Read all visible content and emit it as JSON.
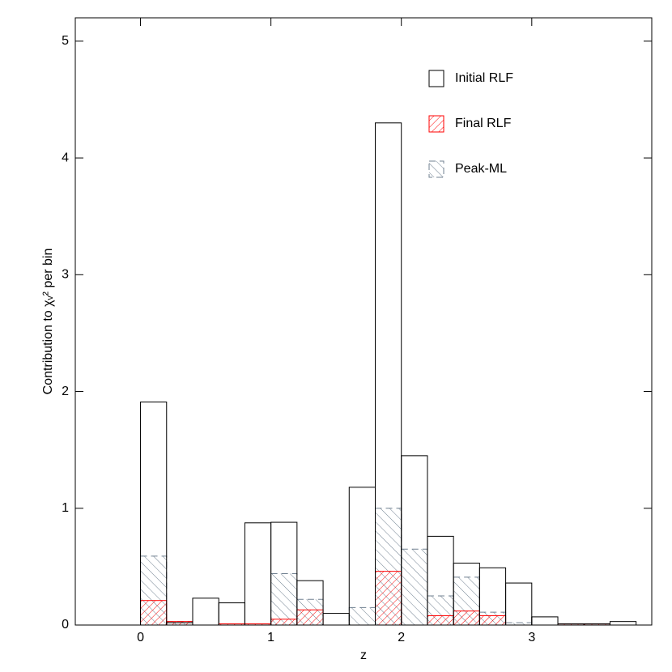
{
  "chart_data": {
    "type": "histogram",
    "xlabel": "z",
    "ylabel": "Contribution to χᵥ² per bin",
    "bins": [
      0,
      0.2,
      0.4,
      0.6,
      0.8,
      1.0,
      1.2,
      1.4,
      1.6,
      1.8,
      2.0,
      2.2,
      2.4,
      2.6,
      2.8,
      3.0,
      3.2,
      3.4,
      3.6,
      3.8
    ],
    "series": [
      {
        "name": "Initial RLF",
        "color": "#000000",
        "hatch": "none",
        "linestyle": "solid",
        "values": [
          1.91,
          0.02,
          0.23,
          0.19,
          0.875,
          0.88,
          0.38,
          0.1,
          1.18,
          4.3,
          1.45,
          0.76,
          0.53,
          0.49,
          0.36,
          0.07,
          0.01,
          0.01,
          0.03
        ]
      },
      {
        "name": "Final RLF",
        "color": "#ff0000",
        "hatch": "/",
        "linestyle": "solid",
        "values": [
          0.21,
          0.03,
          0,
          0.01,
          0.01,
          0.05,
          0.13,
          0,
          0,
          0.46,
          0,
          0.08,
          0.12,
          0.08,
          0,
          0,
          0.01,
          0.01,
          0
        ]
      },
      {
        "name": "Peak-ML",
        "color": "#708090",
        "hatch": "\\",
        "linestyle": "dashed",
        "values": [
          0.59,
          0.03,
          0,
          0,
          0,
          0.44,
          0.22,
          0,
          0.15,
          1.0,
          0.65,
          0.25,
          0.41,
          0.11,
          0.02,
          0,
          0,
          0,
          0
        ]
      }
    ],
    "xlim": [
      -0.5,
      3.92
    ],
    "ylim": [
      0,
      5.2
    ],
    "xticks": [
      0,
      1,
      2,
      3
    ],
    "yticks": [
      0,
      1,
      2,
      3,
      4,
      5
    ],
    "legend": "upper right"
  }
}
